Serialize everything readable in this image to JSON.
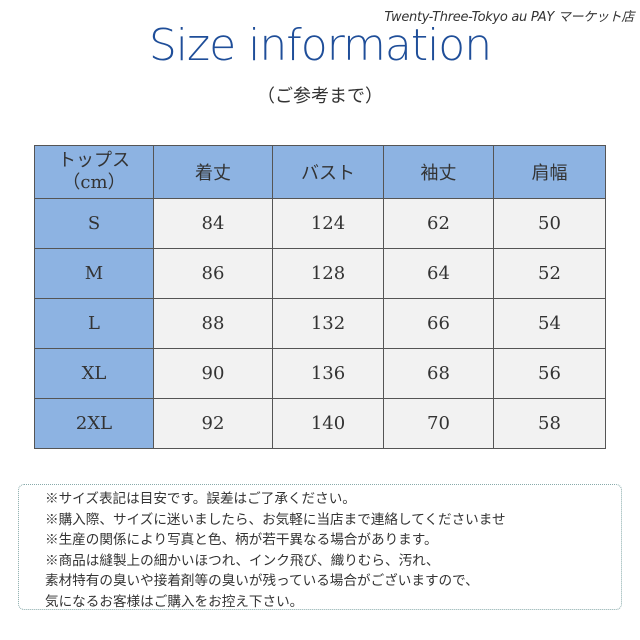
{
  "shop_name": "Twenty-Three-Tokyo au PAY マーケット店",
  "title": "Size information",
  "subtitle": "（ご参考まで）",
  "table": {
    "headers": [
      "トップス（cm）",
      "着丈",
      "バスト",
      "袖丈",
      "肩幅"
    ],
    "rows": [
      [
        "S",
        "84",
        "124",
        "62",
        "50"
      ],
      [
        "M",
        "86",
        "128",
        "64",
        "52"
      ],
      [
        "L",
        "88",
        "132",
        "66",
        "54"
      ],
      [
        "XL",
        "90",
        "136",
        "68",
        "56"
      ],
      [
        "2XL",
        "92",
        "140",
        "70",
        "58"
      ]
    ]
  },
  "notes": [
    "※サイズ表記は目安です。誤差はご了承ください。",
    "※購入際、サイズに迷いましたら、お気軽に当店まで連絡してくださいませ",
    "※生産の関係により写真と色、柄が若干異なる場合があります。",
    "※商品は縫製上の細かいほつれ、インク飛び、織りむら、汚れ、",
    "素材特有の臭いや接着剤等の臭いが残っている場合がございますので、",
    "気になるお客様はご購入をお控え下さい。"
  ]
}
